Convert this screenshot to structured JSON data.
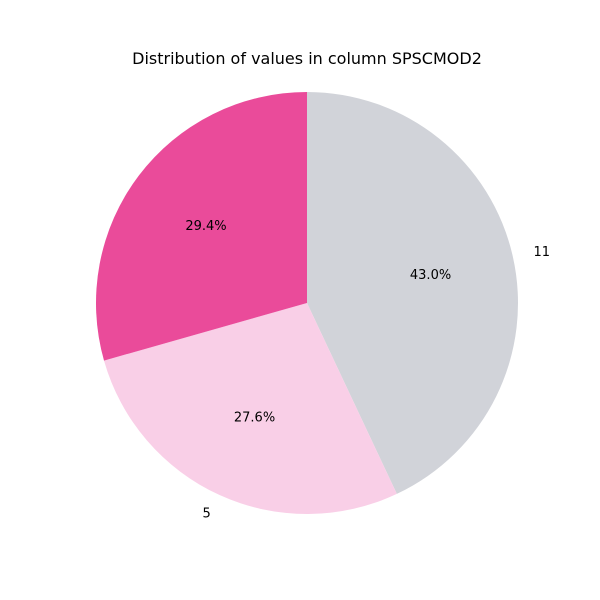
{
  "chart_data": {
    "type": "pie",
    "title": "Distribution of values in column SPSCMOD2",
    "slices": [
      {
        "label": "11",
        "value": 43.0,
        "pct_label": "43.0%",
        "color": "#d1d3d9"
      },
      {
        "label": "5",
        "value": 27.6,
        "pct_label": "27.6%",
        "color": "#f9cfe7"
      },
      {
        "label": "",
        "value": 29.4,
        "pct_label": "29.4%",
        "color": "#ea4b9a"
      }
    ],
    "start_angle_deg": 90,
    "direction": "clockwise"
  }
}
